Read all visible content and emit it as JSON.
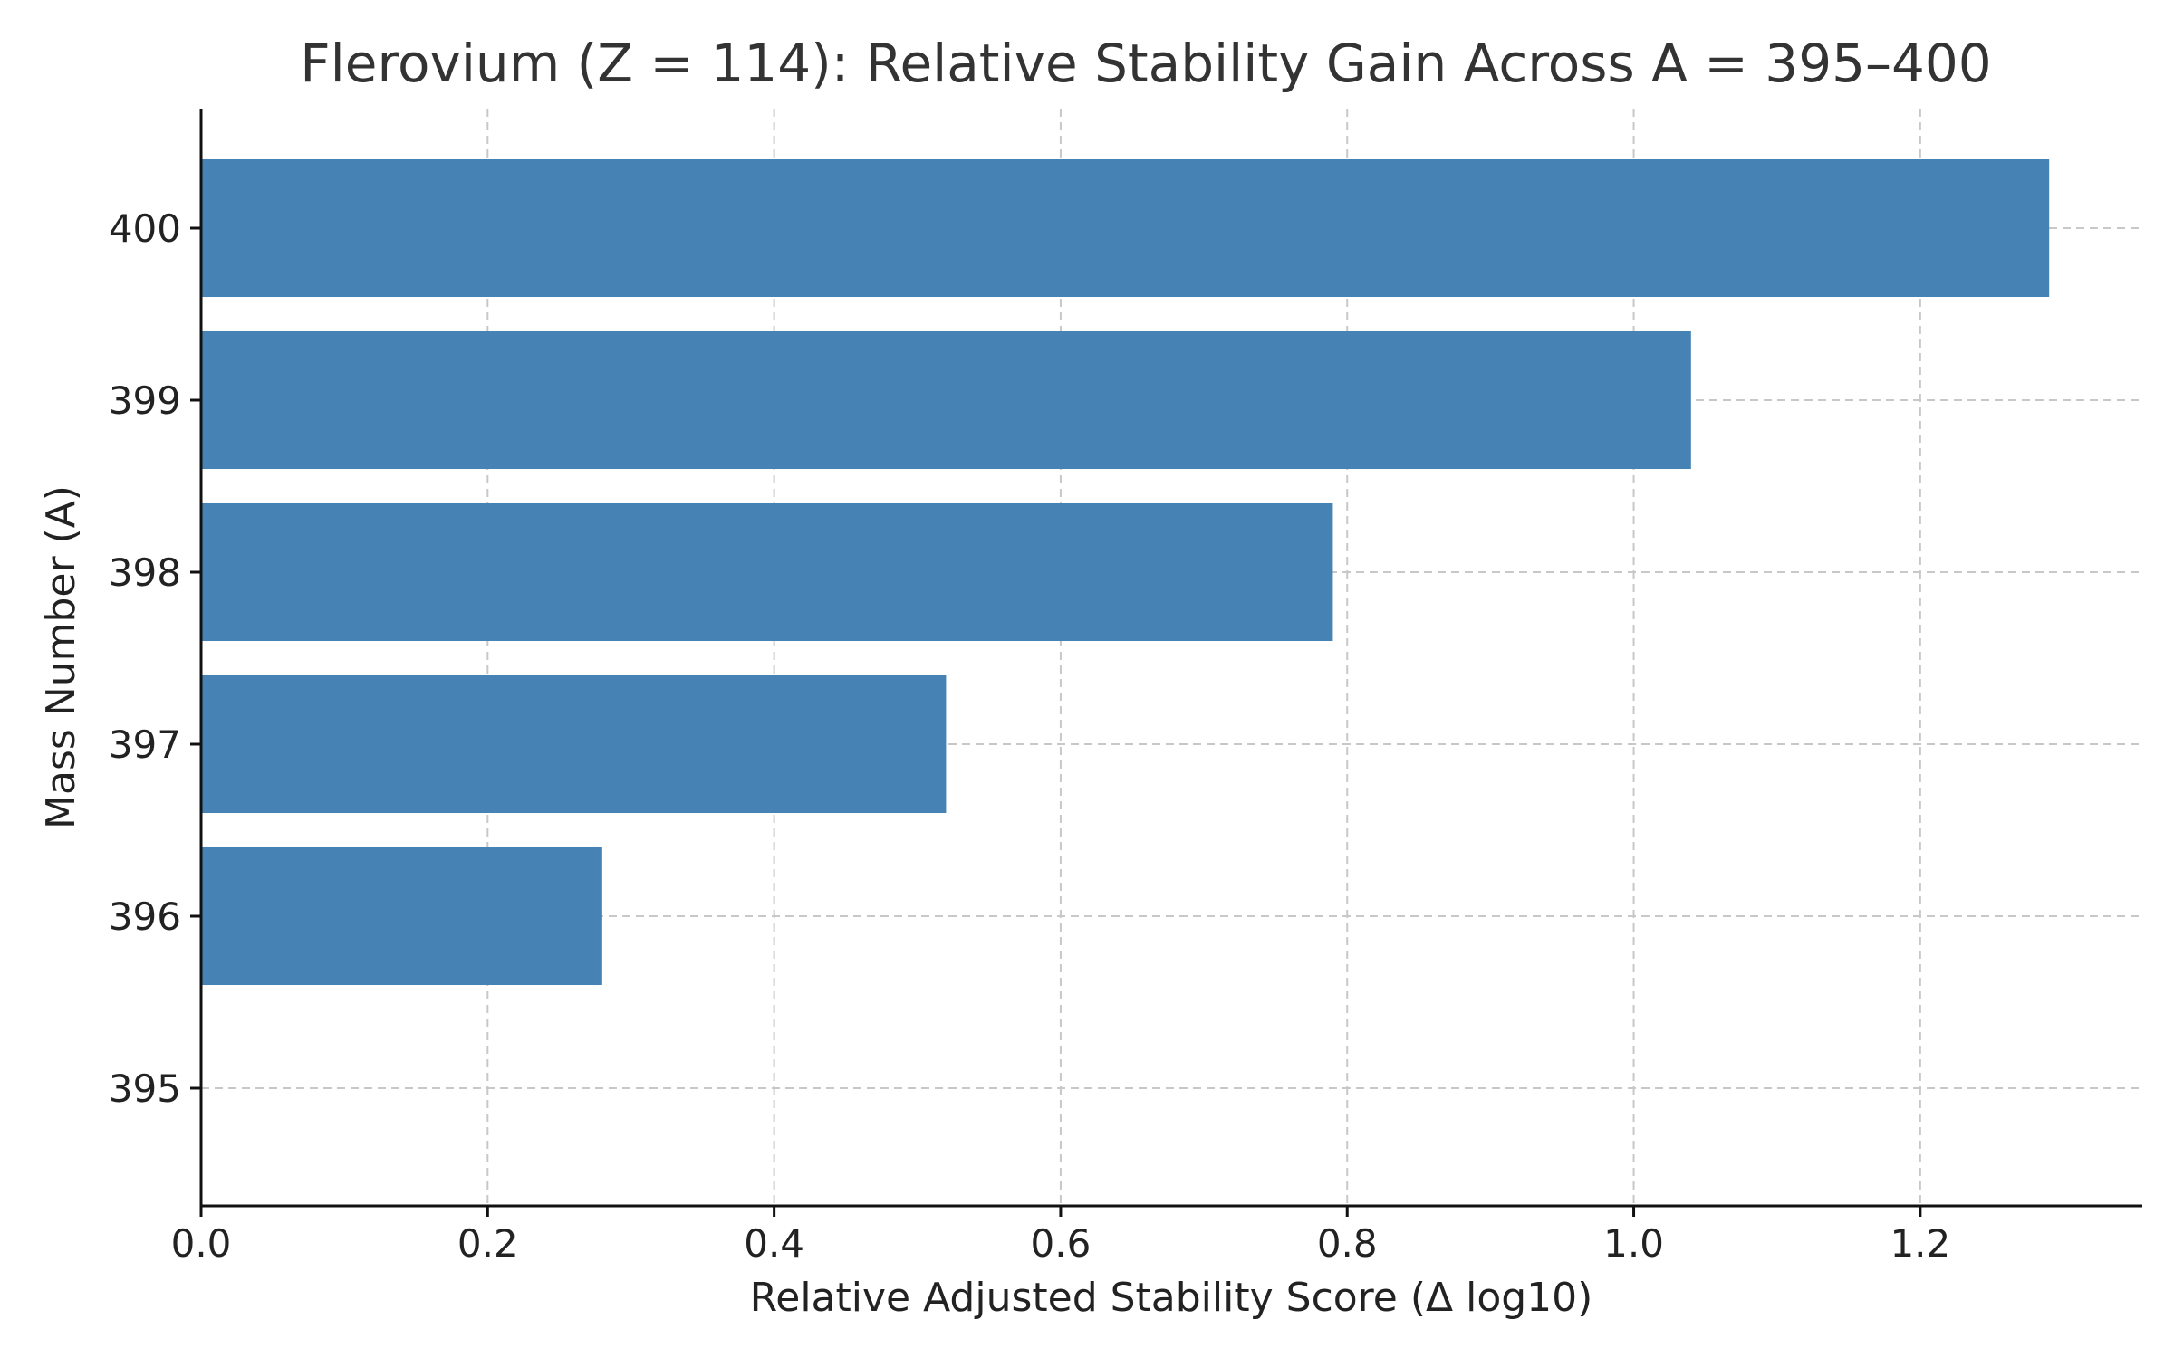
{
  "chart_data": {
    "type": "bar",
    "orientation": "horizontal",
    "title": "Flerovium (Z = 114): Relative Stability Gain Across A = 395–400",
    "xlabel": "Relative Adjusted Stability Score (Δ log10)",
    "ylabel": "Mass Number (A)",
    "categories": [
      "395",
      "396",
      "397",
      "398",
      "399",
      "400"
    ],
    "values": [
      0.0,
      0.28,
      0.52,
      0.79,
      1.04,
      1.29
    ],
    "xlim": [
      0.0,
      1.355
    ],
    "xticks": [
      "0.0",
      "0.2",
      "0.4",
      "0.6",
      "0.8",
      "1.0",
      "1.2"
    ],
    "xtick_values": [
      0.0,
      0.2,
      0.4,
      0.6,
      0.8,
      1.0,
      1.2
    ],
    "grid": true,
    "bar_color": "#4682b4"
  }
}
